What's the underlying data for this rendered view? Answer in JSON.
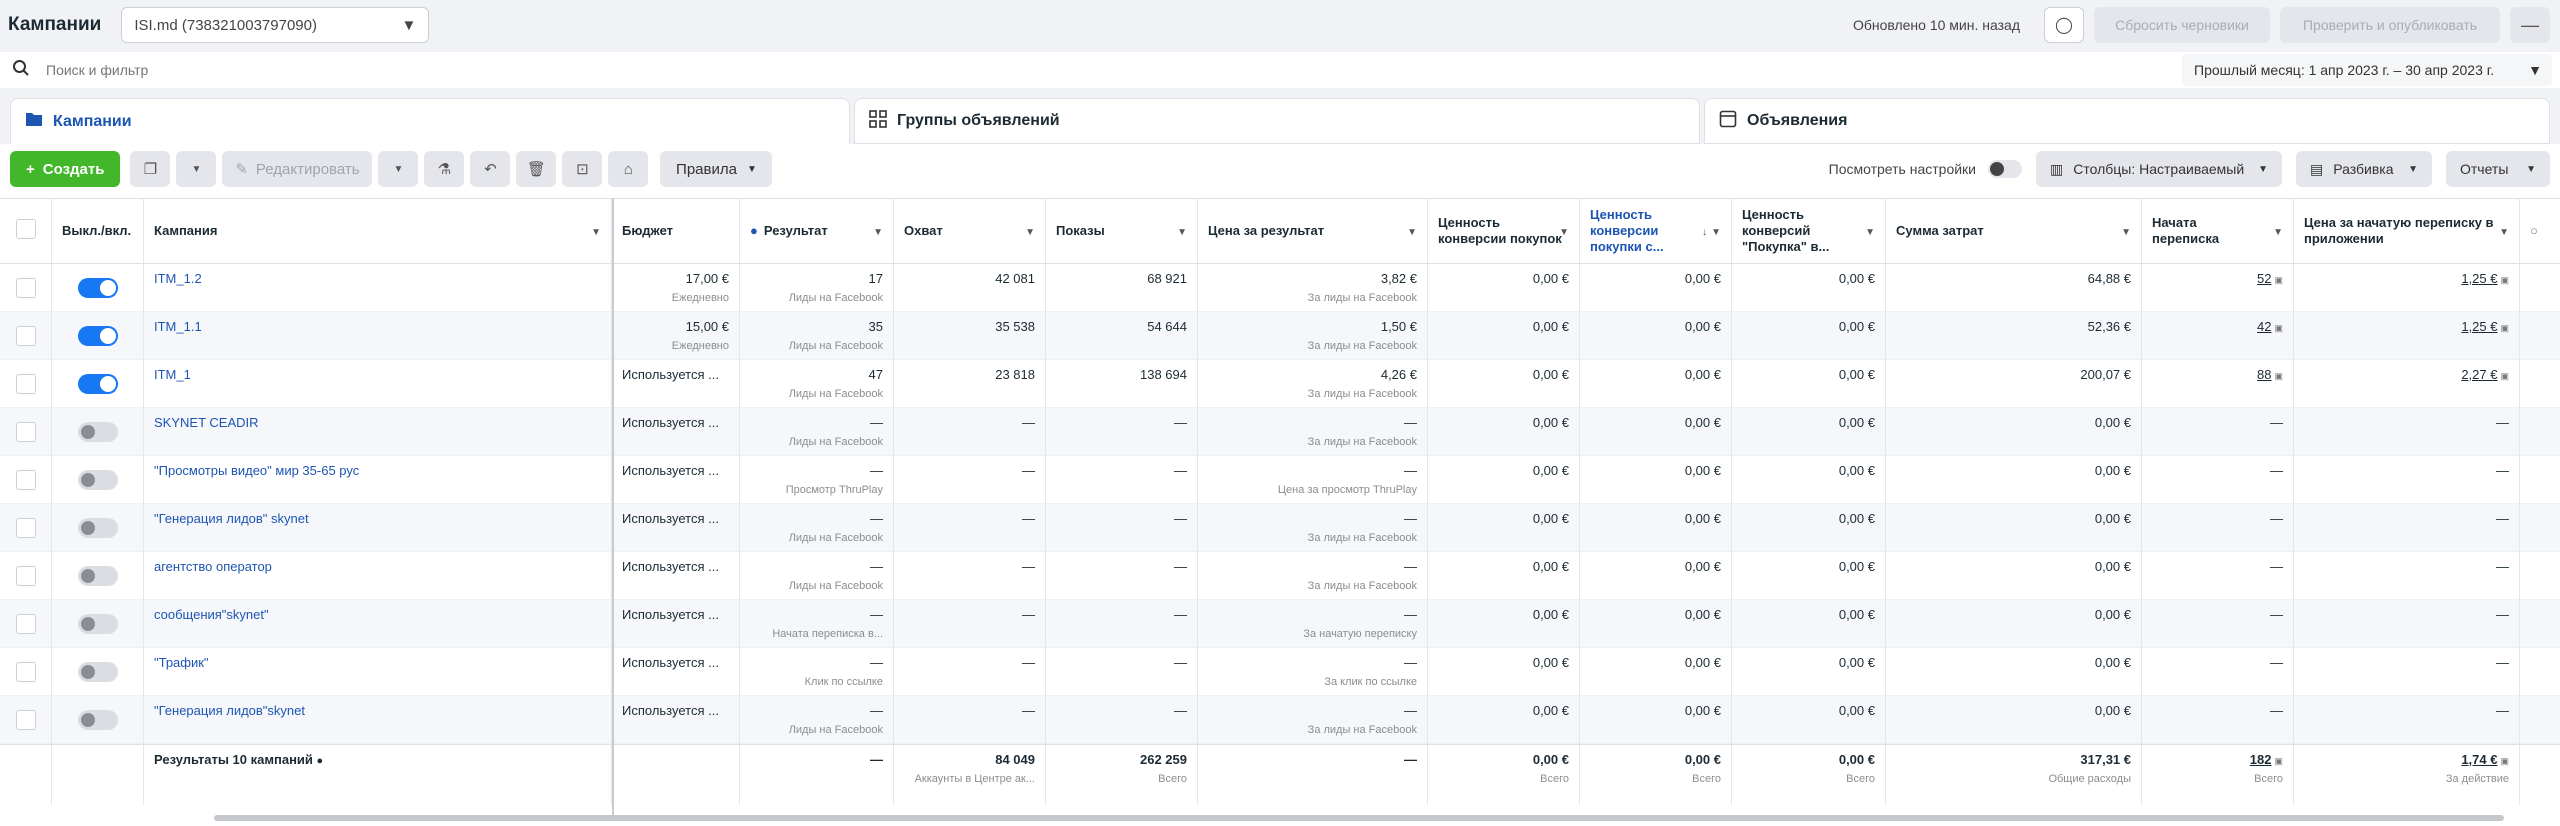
{
  "topbar": {
    "title": "Кампании",
    "account": "ISI.md (738321003797090)",
    "updated": "Обновлено 10 мин. назад",
    "discard": "Сбросить черновики",
    "review": "Проверить и опубликовать"
  },
  "search": {
    "placeholder": "Поиск и фильтр",
    "date_range": "Прошлый месяц: 1 апр 2023 г. – 30 апр 2023 г."
  },
  "tabs": [
    "Кампании",
    "Группы объявлений",
    "Объявления"
  ],
  "toolbar": {
    "create": "Создать",
    "edit": "Редактировать",
    "rules": "Правила",
    "view_settings": "Посмотреть настройки",
    "columns": "Столбцы: Настраиваемый",
    "breakdown": "Разбивка",
    "reports": "Отчеты"
  },
  "columns": {
    "onoff": "Выкл./вкл.",
    "campaign": "Кампания",
    "budget": "Бюджет",
    "result": "Результат",
    "reach": "Охват",
    "impressions": "Показы",
    "cost_per_result": "Цена за результат",
    "conv_value_purchase": "Ценность конверсии покупок",
    "conv_value_purchase_roas": "Ценность конверсии покупки с...",
    "conv_value_purchase_quote": "Ценность конверсий \"Покупка\" в...",
    "amount_spent": "Сумма затрат",
    "conv_started": "Начата переписка",
    "cost_conv_started": "Цена за начатую переписку в приложении"
  },
  "rows": [
    {
      "name": "ITM_1.2",
      "on": true,
      "budget": "17,00 €",
      "budget_sub": "Ежедневно",
      "result": "17",
      "result_sub": "Лиды на Facebook",
      "reach": "42 081",
      "impressions": "68 921",
      "cpr": "3,82 €",
      "cpr_sub": "За лиды на Facebook",
      "v1": "0,00 €",
      "v2": "0,00 €",
      "v3": "0,00 €",
      "spent": "64,88 €",
      "conv": "52",
      "cconv": "1,25 €"
    },
    {
      "name": "ITM_1.1",
      "on": true,
      "budget": "15,00 €",
      "budget_sub": "Ежедневно",
      "result": "35",
      "result_sub": "Лиды на Facebook",
      "reach": "35 538",
      "impressions": "54 644",
      "cpr": "1,50 €",
      "cpr_sub": "За лиды на Facebook",
      "v1": "0,00 €",
      "v2": "0,00 €",
      "v3": "0,00 €",
      "spent": "52,36 €",
      "conv": "42",
      "cconv": "1,25 €"
    },
    {
      "name": "ITM_1",
      "on": true,
      "budget": "Используется ...",
      "budget_sub": "",
      "result": "47",
      "result_sub": "Лиды на Facebook",
      "reach": "23 818",
      "impressions": "138 694",
      "cpr": "4,26 €",
      "cpr_sub": "За лиды на Facebook",
      "v1": "0,00 €",
      "v2": "0,00 €",
      "v3": "0,00 €",
      "spent": "200,07 €",
      "conv": "88",
      "cconv": "2,27 €"
    },
    {
      "name": "SKYNET CEADIR",
      "on": false,
      "budget": "Используется ...",
      "budget_sub": "",
      "result": "—",
      "result_sub": "Лиды на Facebook",
      "reach": "—",
      "impressions": "—",
      "cpr": "—",
      "cpr_sub": "За лиды на Facebook",
      "v1": "0,00 €",
      "v2": "0,00 €",
      "v3": "0,00 €",
      "spent": "0,00 €",
      "conv": "—",
      "cconv": "—"
    },
    {
      "name": "\"Просмотры видео\" мир 35-65 рус",
      "on": false,
      "budget": "Используется ...",
      "budget_sub": "",
      "result": "—",
      "result_sub": "Просмотр ThruPlay",
      "reach": "—",
      "impressions": "—",
      "cpr": "—",
      "cpr_sub": "Цена за просмотр ThruPlay",
      "v1": "0,00 €",
      "v2": "0,00 €",
      "v3": "0,00 €",
      "spent": "0,00 €",
      "conv": "—",
      "cconv": "—"
    },
    {
      "name": "\"Генерация лидов\" skynet",
      "on": false,
      "budget": "Используется ...",
      "budget_sub": "",
      "result": "—",
      "result_sub": "Лиды на Facebook",
      "reach": "—",
      "impressions": "—",
      "cpr": "—",
      "cpr_sub": "За лиды на Facebook",
      "v1": "0,00 €",
      "v2": "0,00 €",
      "v3": "0,00 €",
      "spent": "0,00 €",
      "conv": "—",
      "cconv": "—"
    },
    {
      "name": "агентство оператор",
      "on": false,
      "budget": "Используется ...",
      "budget_sub": "",
      "result": "—",
      "result_sub": "Лиды на Facebook",
      "reach": "—",
      "impressions": "—",
      "cpr": "—",
      "cpr_sub": "За лиды на Facebook",
      "v1": "0,00 €",
      "v2": "0,00 €",
      "v3": "0,00 €",
      "spent": "0,00 €",
      "conv": "—",
      "cconv": "—"
    },
    {
      "name": "сообщения\"skynet\"",
      "on": false,
      "budget": "Используется ...",
      "budget_sub": "",
      "result": "—",
      "result_sub": "Начата переписка в...",
      "reach": "—",
      "impressions": "—",
      "cpr": "—",
      "cpr_sub": "За начатую переписку",
      "v1": "0,00 €",
      "v2": "0,00 €",
      "v3": "0,00 €",
      "spent": "0,00 €",
      "conv": "—",
      "cconv": "—"
    },
    {
      "name": "\"Трафик\"",
      "on": false,
      "budget": "Используется ...",
      "budget_sub": "",
      "result": "—",
      "result_sub": "Клик по ссылке",
      "reach": "—",
      "impressions": "—",
      "cpr": "—",
      "cpr_sub": "За клик по ссылке",
      "v1": "0,00 €",
      "v2": "0,00 €",
      "v3": "0,00 €",
      "spent": "0,00 €",
      "conv": "—",
      "cconv": "—"
    },
    {
      "name": "\"Генерация лидов\"skynet",
      "on": false,
      "budget": "Используется ...",
      "budget_sub": "",
      "result": "—",
      "result_sub": "Лиды на Facebook",
      "reach": "—",
      "impressions": "—",
      "cpr": "—",
      "cpr_sub": "За лиды на Facebook",
      "v1": "0,00 €",
      "v2": "0,00 €",
      "v3": "0,00 €",
      "spent": "0,00 €",
      "conv": "—",
      "cconv": "—"
    }
  ],
  "footer": {
    "label": "Результаты 10 кампаний",
    "result": "—",
    "reach": "84 049",
    "reach_sub": "Аккаунты в Центре ак...",
    "impressions": "262 259",
    "impressions_sub": "Всего",
    "cpr": "—",
    "v1": "0,00 €",
    "v1_sub": "Всего",
    "v2": "0,00 €",
    "v2_sub": "Всего",
    "v3": "0,00 €",
    "v3_sub": "Всего",
    "spent": "317,31 €",
    "spent_sub": "Общие расходы",
    "conv": "182",
    "conv_sub": "Всего",
    "cconv": "1,74 €",
    "cconv_sub": "За действие"
  }
}
